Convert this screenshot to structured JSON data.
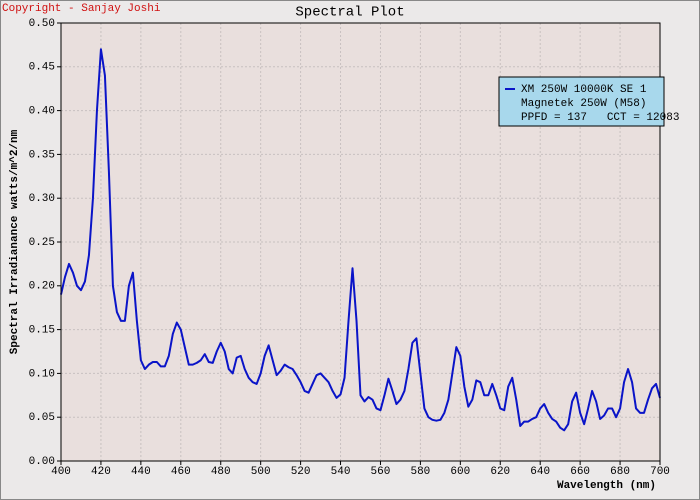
{
  "chart_data": {
    "type": "line",
    "title": "Spectral Plot",
    "copyright": "Copyright - Sanjay Joshi",
    "xlabel": "Wavelength (nm)",
    "ylabel": "Spectral Irradianance watts/m^2/nm",
    "legend_notes": [
      "Magnetek 250W (M58)",
      "PPFD = 137   CCT = 12083"
    ],
    "legend_position": "upper right",
    "grid": true,
    "xlim": [
      400,
      700
    ],
    "ylim": [
      0,
      0.5
    ],
    "xticks": [
      400,
      420,
      440,
      460,
      480,
      500,
      520,
      540,
      560,
      580,
      600,
      620,
      640,
      660,
      680,
      700
    ],
    "yticks": [
      {
        "value": 0,
        "label": "0.00"
      },
      0.05,
      {
        "value": 0.1,
        "label": "0.10"
      },
      0.15,
      {
        "value": 0.2,
        "label": "0.20"
      },
      0.25,
      {
        "value": 0.3,
        "label": "0.30"
      },
      0.35,
      {
        "value": 0.4,
        "label": "0.40"
      },
      0.45,
      {
        "value": 0.5,
        "label": "0.50"
      }
    ],
    "x": [
      400,
      402,
      404,
      406,
      408,
      410,
      412,
      414,
      416,
      418,
      420,
      422,
      424,
      426,
      428,
      430,
      432,
      434,
      436,
      438,
      440,
      442,
      444,
      446,
      448,
      450,
      452,
      454,
      456,
      458,
      460,
      462,
      464,
      466,
      468,
      470,
      472,
      474,
      476,
      478,
      480,
      482,
      484,
      486,
      488,
      490,
      492,
      494,
      496,
      498,
      500,
      502,
      504,
      506,
      508,
      510,
      512,
      514,
      516,
      518,
      520,
      522,
      524,
      526,
      528,
      530,
      532,
      534,
      536,
      538,
      540,
      542,
      544,
      546,
      548,
      550,
      552,
      554,
      556,
      558,
      560,
      562,
      564,
      566,
      568,
      570,
      572,
      574,
      576,
      578,
      580,
      582,
      584,
      586,
      588,
      590,
      592,
      594,
      596,
      598,
      600,
      602,
      604,
      606,
      608,
      610,
      612,
      614,
      616,
      618,
      620,
      622,
      624,
      626,
      628,
      630,
      632,
      634,
      636,
      638,
      640,
      642,
      644,
      646,
      648,
      650,
      652,
      654,
      656,
      658,
      660,
      662,
      664,
      666,
      668,
      670,
      672,
      674,
      676,
      678,
      680,
      682,
      684,
      686,
      688,
      690,
      692,
      694,
      696,
      698,
      700
    ],
    "series": [
      {
        "name": "XM 250W 10000K SE 1",
        "color": "#0a14c8",
        "values": [
          0.19,
          0.21,
          0.225,
          0.215,
          0.2,
          0.195,
          0.205,
          0.235,
          0.3,
          0.4,
          0.47,
          0.44,
          0.33,
          0.2,
          0.17,
          0.16,
          0.16,
          0.2,
          0.215,
          0.16,
          0.115,
          0.105,
          0.11,
          0.113,
          0.113,
          0.108,
          0.108,
          0.12,
          0.145,
          0.158,
          0.15,
          0.13,
          0.11,
          0.11,
          0.112,
          0.115,
          0.122,
          0.113,
          0.112,
          0.125,
          0.135,
          0.125,
          0.105,
          0.1,
          0.118,
          0.12,
          0.105,
          0.095,
          0.09,
          0.088,
          0.1,
          0.12,
          0.132,
          0.115,
          0.098,
          0.103,
          0.11,
          0.107,
          0.105,
          0.098,
          0.09,
          0.08,
          0.078,
          0.088,
          0.098,
          0.1,
          0.095,
          0.09,
          0.08,
          0.072,
          0.076,
          0.095,
          0.16,
          0.22,
          0.16,
          0.075,
          0.068,
          0.073,
          0.07,
          0.06,
          0.058,
          0.075,
          0.094,
          0.08,
          0.065,
          0.07,
          0.08,
          0.105,
          0.135,
          0.14,
          0.1,
          0.06,
          0.05,
          0.047,
          0.046,
          0.047,
          0.055,
          0.07,
          0.1,
          0.13,
          0.12,
          0.085,
          0.062,
          0.07,
          0.092,
          0.09,
          0.075,
          0.075,
          0.088,
          0.075,
          0.06,
          0.058,
          0.085,
          0.095,
          0.07,
          0.04,
          0.045,
          0.045,
          0.048,
          0.05,
          0.06,
          0.065,
          0.055,
          0.048,
          0.045,
          0.038,
          0.035,
          0.042,
          0.068,
          0.078,
          0.055,
          0.042,
          0.06,
          0.08,
          0.068,
          0.048,
          0.052,
          0.06,
          0.06,
          0.05,
          0.06,
          0.09,
          0.105,
          0.09,
          0.06,
          0.055,
          0.055,
          0.07,
          0.083,
          0.088,
          0.072
        ]
      }
    ]
  }
}
